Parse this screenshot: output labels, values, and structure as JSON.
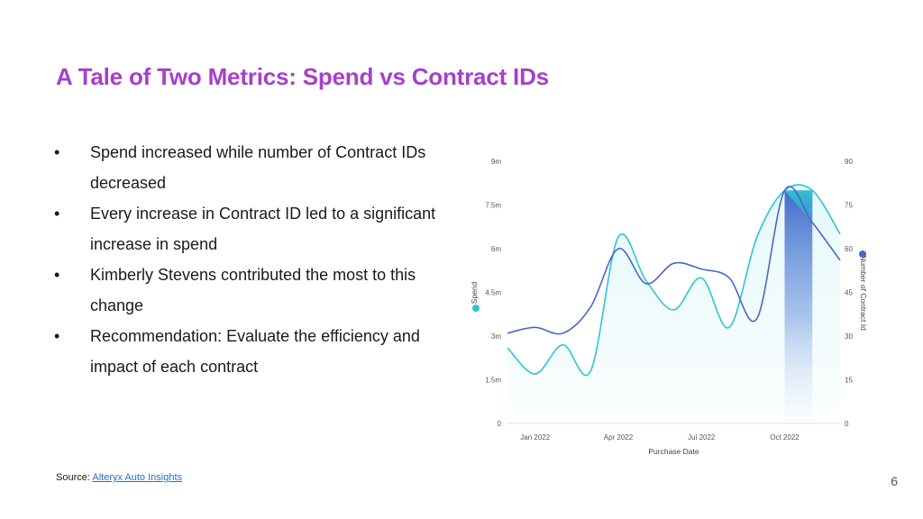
{
  "slide": {
    "title": "A Tale of Two Metrics: Spend vs Contract IDs",
    "bullets": [
      "Spend increased while number of Contract IDs decreased",
      "Every increase in Contract ID led to a significant increase in spend",
      "Kimberly Stevens contributed the most to this change",
      "Recommendation: Evaluate the efficiency and impact of each contract"
    ],
    "bullet_marker": "•",
    "source_prefix": "Source: ",
    "source_link": "Alteryx Auto Insights",
    "page_number": "6"
  },
  "chart_data": {
    "type": "line",
    "title": "",
    "xlabel": "Purchase Date",
    "ylabel": "Spend",
    "y2label": "Number of Contract Id",
    "x_ticks": [
      "Jan 2022",
      "Apr 2022",
      "Jul 2022",
      "Oct 2022"
    ],
    "y_ticks": [
      "0",
      "1.5m",
      "3m",
      "4.5m",
      "6m",
      "7.5m",
      "9m"
    ],
    "y2_ticks": [
      "0",
      "15",
      "30",
      "45",
      "60",
      "75",
      "90"
    ],
    "ylim": [
      0,
      9000000
    ],
    "y2lim": [
      0,
      90
    ],
    "x_months_from_start": [
      0,
      1,
      2,
      3,
      4,
      5,
      6,
      7,
      8,
      9,
      10,
      11,
      12
    ],
    "series": [
      {
        "name": "Spend",
        "axis": "left",
        "color": "#2ec5d3",
        "values": [
          2600000,
          1700000,
          2700000,
          1800000,
          6400000,
          4900000,
          3900000,
          5000000,
          3300000,
          6400000,
          8000000,
          8000000,
          6500000
        ]
      },
      {
        "name": "Number of Contract Id",
        "axis": "right",
        "color": "#4a67c6",
        "values": [
          31,
          33,
          31,
          40,
          60,
          48,
          55,
          53,
          50,
          36,
          80,
          69,
          56
        ]
      }
    ],
    "highlight_range": [
      10,
      11
    ],
    "grid": false,
    "legend": "axis-dots"
  }
}
